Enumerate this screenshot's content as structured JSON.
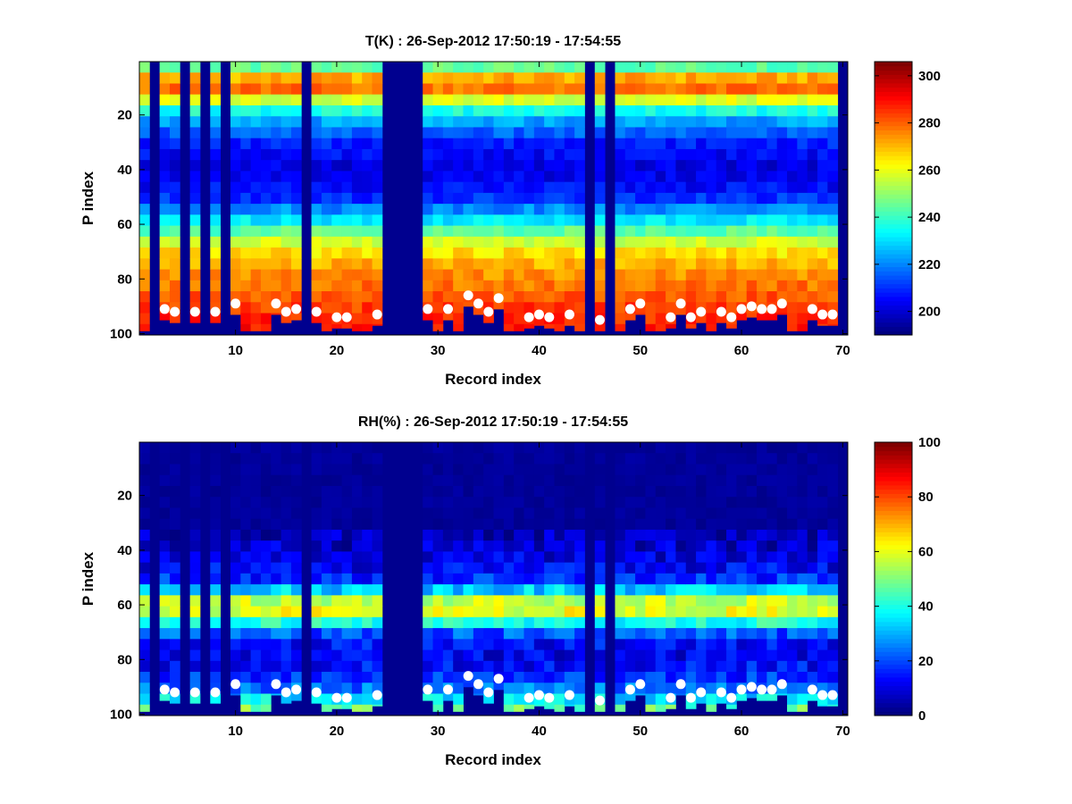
{
  "chart_data": [
    {
      "type": "heatmap",
      "title": "T(K) : 26-Sep-2012 17:50:19 - 17:54:55",
      "xlabel": "Record index",
      "ylabel": "P index",
      "xlim": [
        0.5,
        70.5
      ],
      "ylim": [
        100,
        1
      ],
      "y_reversed": true,
      "xticks": [
        10,
        20,
        30,
        40,
        50,
        60,
        70
      ],
      "yticks": [
        20,
        40,
        60,
        80,
        100
      ],
      "colorbar": {
        "min": 190,
        "max": 306,
        "ticks": [
          200,
          220,
          240,
          260,
          280,
          300
        ],
        "colormap": "jet"
      },
      "profile": {
        "p": [
          1,
          5,
          8,
          10,
          12,
          20,
          30,
          40,
          50,
          60,
          68,
          75,
          82,
          88,
          94,
          100
        ],
        "value": [
          232,
          265,
          279,
          281,
          272,
          228,
          208,
          200,
          208,
          236,
          262,
          272,
          278,
          283,
          287,
          290
        ]
      },
      "surface_markers": [
        {
          "x": 3,
          "y": 91
        },
        {
          "x": 4,
          "y": 92
        },
        {
          "x": 6,
          "y": 92
        },
        {
          "x": 8,
          "y": 92
        },
        {
          "x": 10,
          "y": 89
        },
        {
          "x": 14,
          "y": 89
        },
        {
          "x": 15,
          "y": 92
        },
        {
          "x": 16,
          "y": 91
        },
        {
          "x": 18,
          "y": 92
        },
        {
          "x": 20,
          "y": 94
        },
        {
          "x": 21,
          "y": 94
        },
        {
          "x": 24,
          "y": 93
        },
        {
          "x": 29,
          "y": 91
        },
        {
          "x": 31,
          "y": 91
        },
        {
          "x": 33,
          "y": 86
        },
        {
          "x": 34,
          "y": 89
        },
        {
          "x": 35,
          "y": 92
        },
        {
          "x": 36,
          "y": 87
        },
        {
          "x": 39,
          "y": 94
        },
        {
          "x": 40,
          "y": 93
        },
        {
          "x": 41,
          "y": 94
        },
        {
          "x": 43,
          "y": 93
        },
        {
          "x": 46,
          "y": 95
        },
        {
          "x": 49,
          "y": 91
        },
        {
          "x": 50,
          "y": 89
        },
        {
          "x": 53,
          "y": 94
        },
        {
          "x": 54,
          "y": 89
        },
        {
          "x": 55,
          "y": 94
        },
        {
          "x": 56,
          "y": 92
        },
        {
          "x": 58,
          "y": 92
        },
        {
          "x": 59,
          "y": 94
        },
        {
          "x": 60,
          "y": 91
        },
        {
          "x": 61,
          "y": 90
        },
        {
          "x": 62,
          "y": 91
        },
        {
          "x": 63,
          "y": 91
        },
        {
          "x": 64,
          "y": 89
        },
        {
          "x": 67,
          "y": 91
        },
        {
          "x": 68,
          "y": 93
        },
        {
          "x": 69,
          "y": 93
        }
      ],
      "missing_records": [
        2,
        5,
        7,
        9,
        17,
        25,
        26,
        27,
        28,
        45,
        47,
        70
      ],
      "partial_records": [
        1,
        4,
        6,
        8,
        10
      ]
    },
    {
      "type": "heatmap",
      "title": "RH(%) : 26-Sep-2012 17:50:19 - 17:54:55",
      "xlabel": "Record index",
      "ylabel": "P index",
      "xlim": [
        0.5,
        70.5
      ],
      "ylim": [
        100,
        1
      ],
      "y_reversed": true,
      "xticks": [
        10,
        20,
        30,
        40,
        50,
        60,
        70
      ],
      "yticks": [
        20,
        40,
        60,
        80,
        100
      ],
      "colorbar": {
        "min": 0,
        "max": 100,
        "ticks": [
          0,
          20,
          40,
          60,
          80,
          100
        ],
        "colormap": "jet"
      },
      "profile": {
        "p": [
          1,
          30,
          36,
          45,
          52,
          56,
          59,
          62,
          65,
          68,
          72,
          78,
          84,
          90,
          96,
          100
        ],
        "value": [
          2,
          2,
          6,
          10,
          18,
          42,
          60,
          62,
          50,
          30,
          15,
          10,
          14,
          22,
          40,
          55
        ]
      },
      "surface_markers": [
        {
          "x": 3,
          "y": 91
        },
        {
          "x": 4,
          "y": 92
        },
        {
          "x": 6,
          "y": 92
        },
        {
          "x": 8,
          "y": 92
        },
        {
          "x": 10,
          "y": 89
        },
        {
          "x": 14,
          "y": 89
        },
        {
          "x": 15,
          "y": 92
        },
        {
          "x": 16,
          "y": 91
        },
        {
          "x": 18,
          "y": 92
        },
        {
          "x": 20,
          "y": 94
        },
        {
          "x": 21,
          "y": 94
        },
        {
          "x": 24,
          "y": 93
        },
        {
          "x": 29,
          "y": 91
        },
        {
          "x": 31,
          "y": 91
        },
        {
          "x": 33,
          "y": 86
        },
        {
          "x": 34,
          "y": 89
        },
        {
          "x": 35,
          "y": 92
        },
        {
          "x": 36,
          "y": 87
        },
        {
          "x": 39,
          "y": 94
        },
        {
          "x": 40,
          "y": 93
        },
        {
          "x": 41,
          "y": 94
        },
        {
          "x": 43,
          "y": 93
        },
        {
          "x": 46,
          "y": 95
        },
        {
          "x": 49,
          "y": 91
        },
        {
          "x": 50,
          "y": 89
        },
        {
          "x": 53,
          "y": 94
        },
        {
          "x": 54,
          "y": 89
        },
        {
          "x": 55,
          "y": 94
        },
        {
          "x": 56,
          "y": 92
        },
        {
          "x": 58,
          "y": 92
        },
        {
          "x": 59,
          "y": 94
        },
        {
          "x": 60,
          "y": 91
        },
        {
          "x": 61,
          "y": 90
        },
        {
          "x": 62,
          "y": 91
        },
        {
          "x": 63,
          "y": 91
        },
        {
          "x": 64,
          "y": 89
        },
        {
          "x": 67,
          "y": 91
        },
        {
          "x": 68,
          "y": 93
        },
        {
          "x": 69,
          "y": 93
        }
      ],
      "missing_records": [
        2,
        5,
        7,
        9,
        17,
        25,
        26,
        27,
        28,
        45,
        47,
        70
      ],
      "partial_records": [
        1,
        4,
        6,
        8,
        10
      ]
    }
  ]
}
